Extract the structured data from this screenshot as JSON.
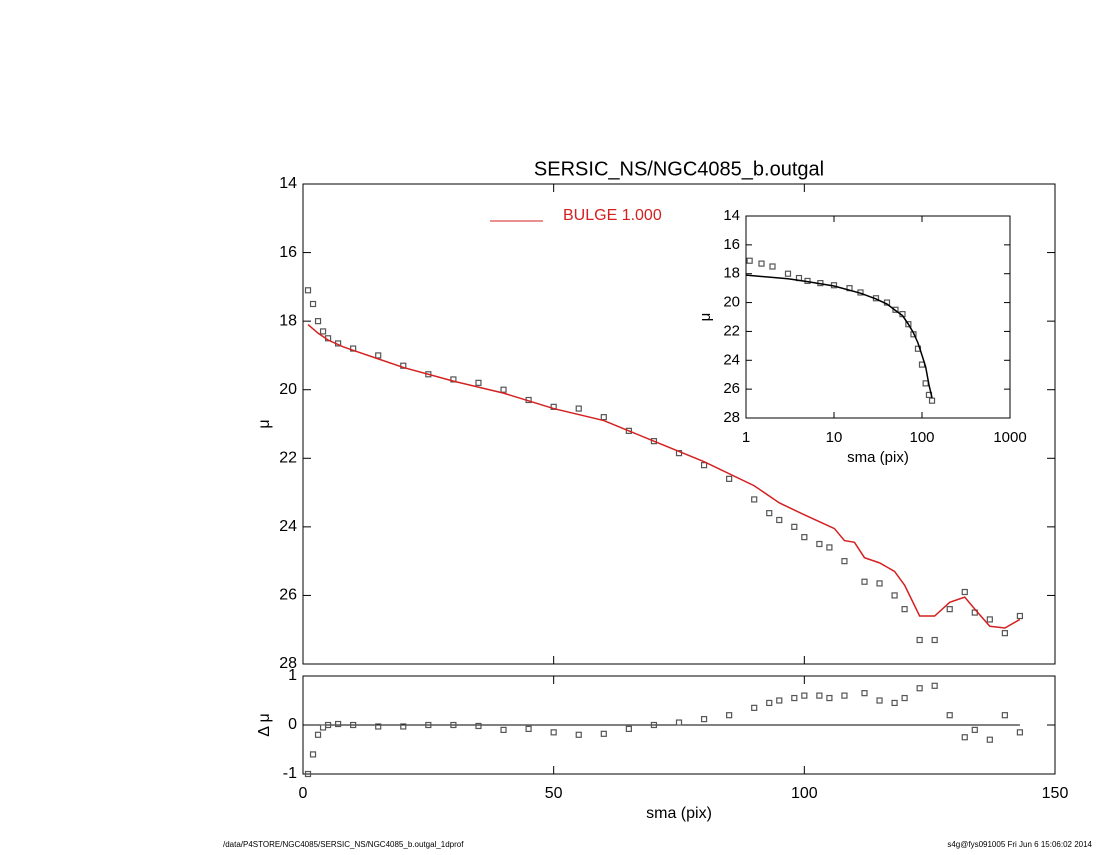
{
  "title": "SERSIC_NS/NGC4085_b.outgal",
  "footer": {
    "left": "/data/P4STORE/NGC4085/SERSIC_NS/NGC4085_b.outgal_1dprof",
    "right": "s4g@fys091005  Fri Jun  6 15:06:02 2014"
  },
  "chart_data": [
    {
      "type": "scatter",
      "y_label": "μ",
      "xlim": [
        0,
        150
      ],
      "xticks": [
        0,
        50,
        100,
        150
      ],
      "show_xtick_labels": false,
      "ylim": [
        28,
        14
      ],
      "yticks": [
        14,
        16,
        18,
        20,
        22,
        24,
        26,
        28
      ],
      "legend": "top-center",
      "series": [
        {
          "style": "points",
          "color": "#555555",
          "x": [
            1,
            2,
            3,
            4,
            5,
            7,
            10,
            15,
            20,
            25,
            30,
            35,
            40,
            45,
            50,
            55,
            60,
            65,
            70,
            75,
            80,
            85,
            90,
            93,
            95,
            98,
            100,
            103,
            105,
            108,
            112,
            115,
            118,
            120,
            123,
            126,
            129,
            132,
            134,
            137,
            140,
            143
          ],
          "values": [
            17.1,
            17.5,
            18.0,
            18.3,
            18.5,
            18.65,
            18.8,
            19.0,
            19.3,
            19.55,
            19.7,
            19.8,
            20.0,
            20.3,
            20.5,
            20.55,
            20.8,
            21.2,
            21.5,
            21.85,
            22.2,
            22.6,
            23.2,
            23.6,
            23.8,
            24.0,
            24.3,
            24.5,
            24.6,
            25.0,
            25.6,
            25.65,
            26.0,
            26.4,
            27.3,
            27.3,
            26.4,
            25.9,
            26.5,
            26.7,
            27.1,
            26.6
          ]
        },
        {
          "style": "line",
          "name": "BULGE  1.000",
          "color": "#d42020",
          "x": [
            1,
            3,
            5,
            8,
            10,
            20,
            30,
            40,
            50,
            60,
            70,
            80,
            90,
            95,
            100,
            103,
            106,
            108,
            110,
            112,
            115,
            118,
            120,
            123,
            126,
            129,
            132,
            134,
            137,
            140,
            143
          ],
          "values": [
            18.1,
            18.35,
            18.55,
            18.75,
            18.85,
            19.35,
            19.75,
            20.1,
            20.55,
            20.9,
            21.5,
            22.1,
            22.8,
            23.3,
            23.65,
            23.85,
            24.05,
            24.4,
            24.45,
            24.9,
            25.05,
            25.3,
            25.7,
            26.6,
            26.6,
            26.2,
            26.05,
            26.4,
            26.9,
            26.95,
            26.7
          ]
        }
      ]
    },
    {
      "type": "scatter",
      "x_label": "sma (pix)",
      "y_label": "Δ μ",
      "xlim": [
        0,
        150
      ],
      "xticks": [
        0,
        50,
        100,
        150
      ],
      "ylim": [
        -1,
        1
      ],
      "yticks": [
        -1,
        0,
        1
      ],
      "hline": 0,
      "series": [
        {
          "style": "points",
          "color": "#555555",
          "x": [
            1,
            2,
            3,
            4,
            5,
            7,
            10,
            15,
            20,
            25,
            30,
            35,
            40,
            45,
            50,
            55,
            60,
            65,
            70,
            75,
            80,
            85,
            90,
            93,
            95,
            98,
            100,
            103,
            105,
            108,
            112,
            115,
            118,
            120,
            123,
            126,
            129,
            132,
            134,
            137,
            140,
            143
          ],
          "values": [
            -1,
            -0.6,
            -0.2,
            -0.05,
            0,
            0.02,
            0,
            -0.03,
            -0.03,
            0,
            0,
            -0.02,
            -0.1,
            -0.08,
            -0.15,
            -0.2,
            -0.18,
            -0.08,
            0,
            0.05,
            0.12,
            0.2,
            0.35,
            0.45,
            0.5,
            0.55,
            0.6,
            0.6,
            0.55,
            0.6,
            0.65,
            0.5,
            0.45,
            0.55,
            0.75,
            0.8,
            0.2,
            -0.25,
            -0.1,
            -0.3,
            0.2,
            -0.15
          ]
        }
      ]
    },
    {
      "type": "scatter",
      "x_label": "sma (pix)",
      "y_label": "μ",
      "log_x": true,
      "xlim": [
        1,
        1000
      ],
      "xticks": [
        1,
        10,
        100,
        1000
      ],
      "ylim": [
        28,
        14
      ],
      "yticks": [
        14,
        16,
        18,
        20,
        22,
        24,
        26,
        28
      ],
      "series": [
        {
          "style": "points",
          "color": "#555555",
          "x": [
            1.1,
            1.5,
            2,
            3,
            4,
            5,
            7,
            10,
            15,
            20,
            30,
            40,
            50,
            60,
            70,
            80,
            90,
            100,
            110,
            120,
            130
          ],
          "values": [
            17.1,
            17.3,
            17.5,
            18.0,
            18.3,
            18.5,
            18.65,
            18.8,
            19.0,
            19.3,
            19.7,
            20.0,
            20.5,
            20.8,
            21.5,
            22.2,
            23.2,
            24.3,
            25.6,
            26.4,
            26.8
          ]
        },
        {
          "style": "line",
          "color": "#000000",
          "x": [
            1,
            3,
            5,
            10,
            20,
            30,
            40,
            50,
            60,
            70,
            80,
            90,
            100,
            110,
            120,
            130
          ],
          "values": [
            18.1,
            18.35,
            18.55,
            18.85,
            19.35,
            19.75,
            20.1,
            20.55,
            20.9,
            21.5,
            22.1,
            22.8,
            23.65,
            24.45,
            25.7,
            26.6
          ]
        }
      ]
    }
  ]
}
